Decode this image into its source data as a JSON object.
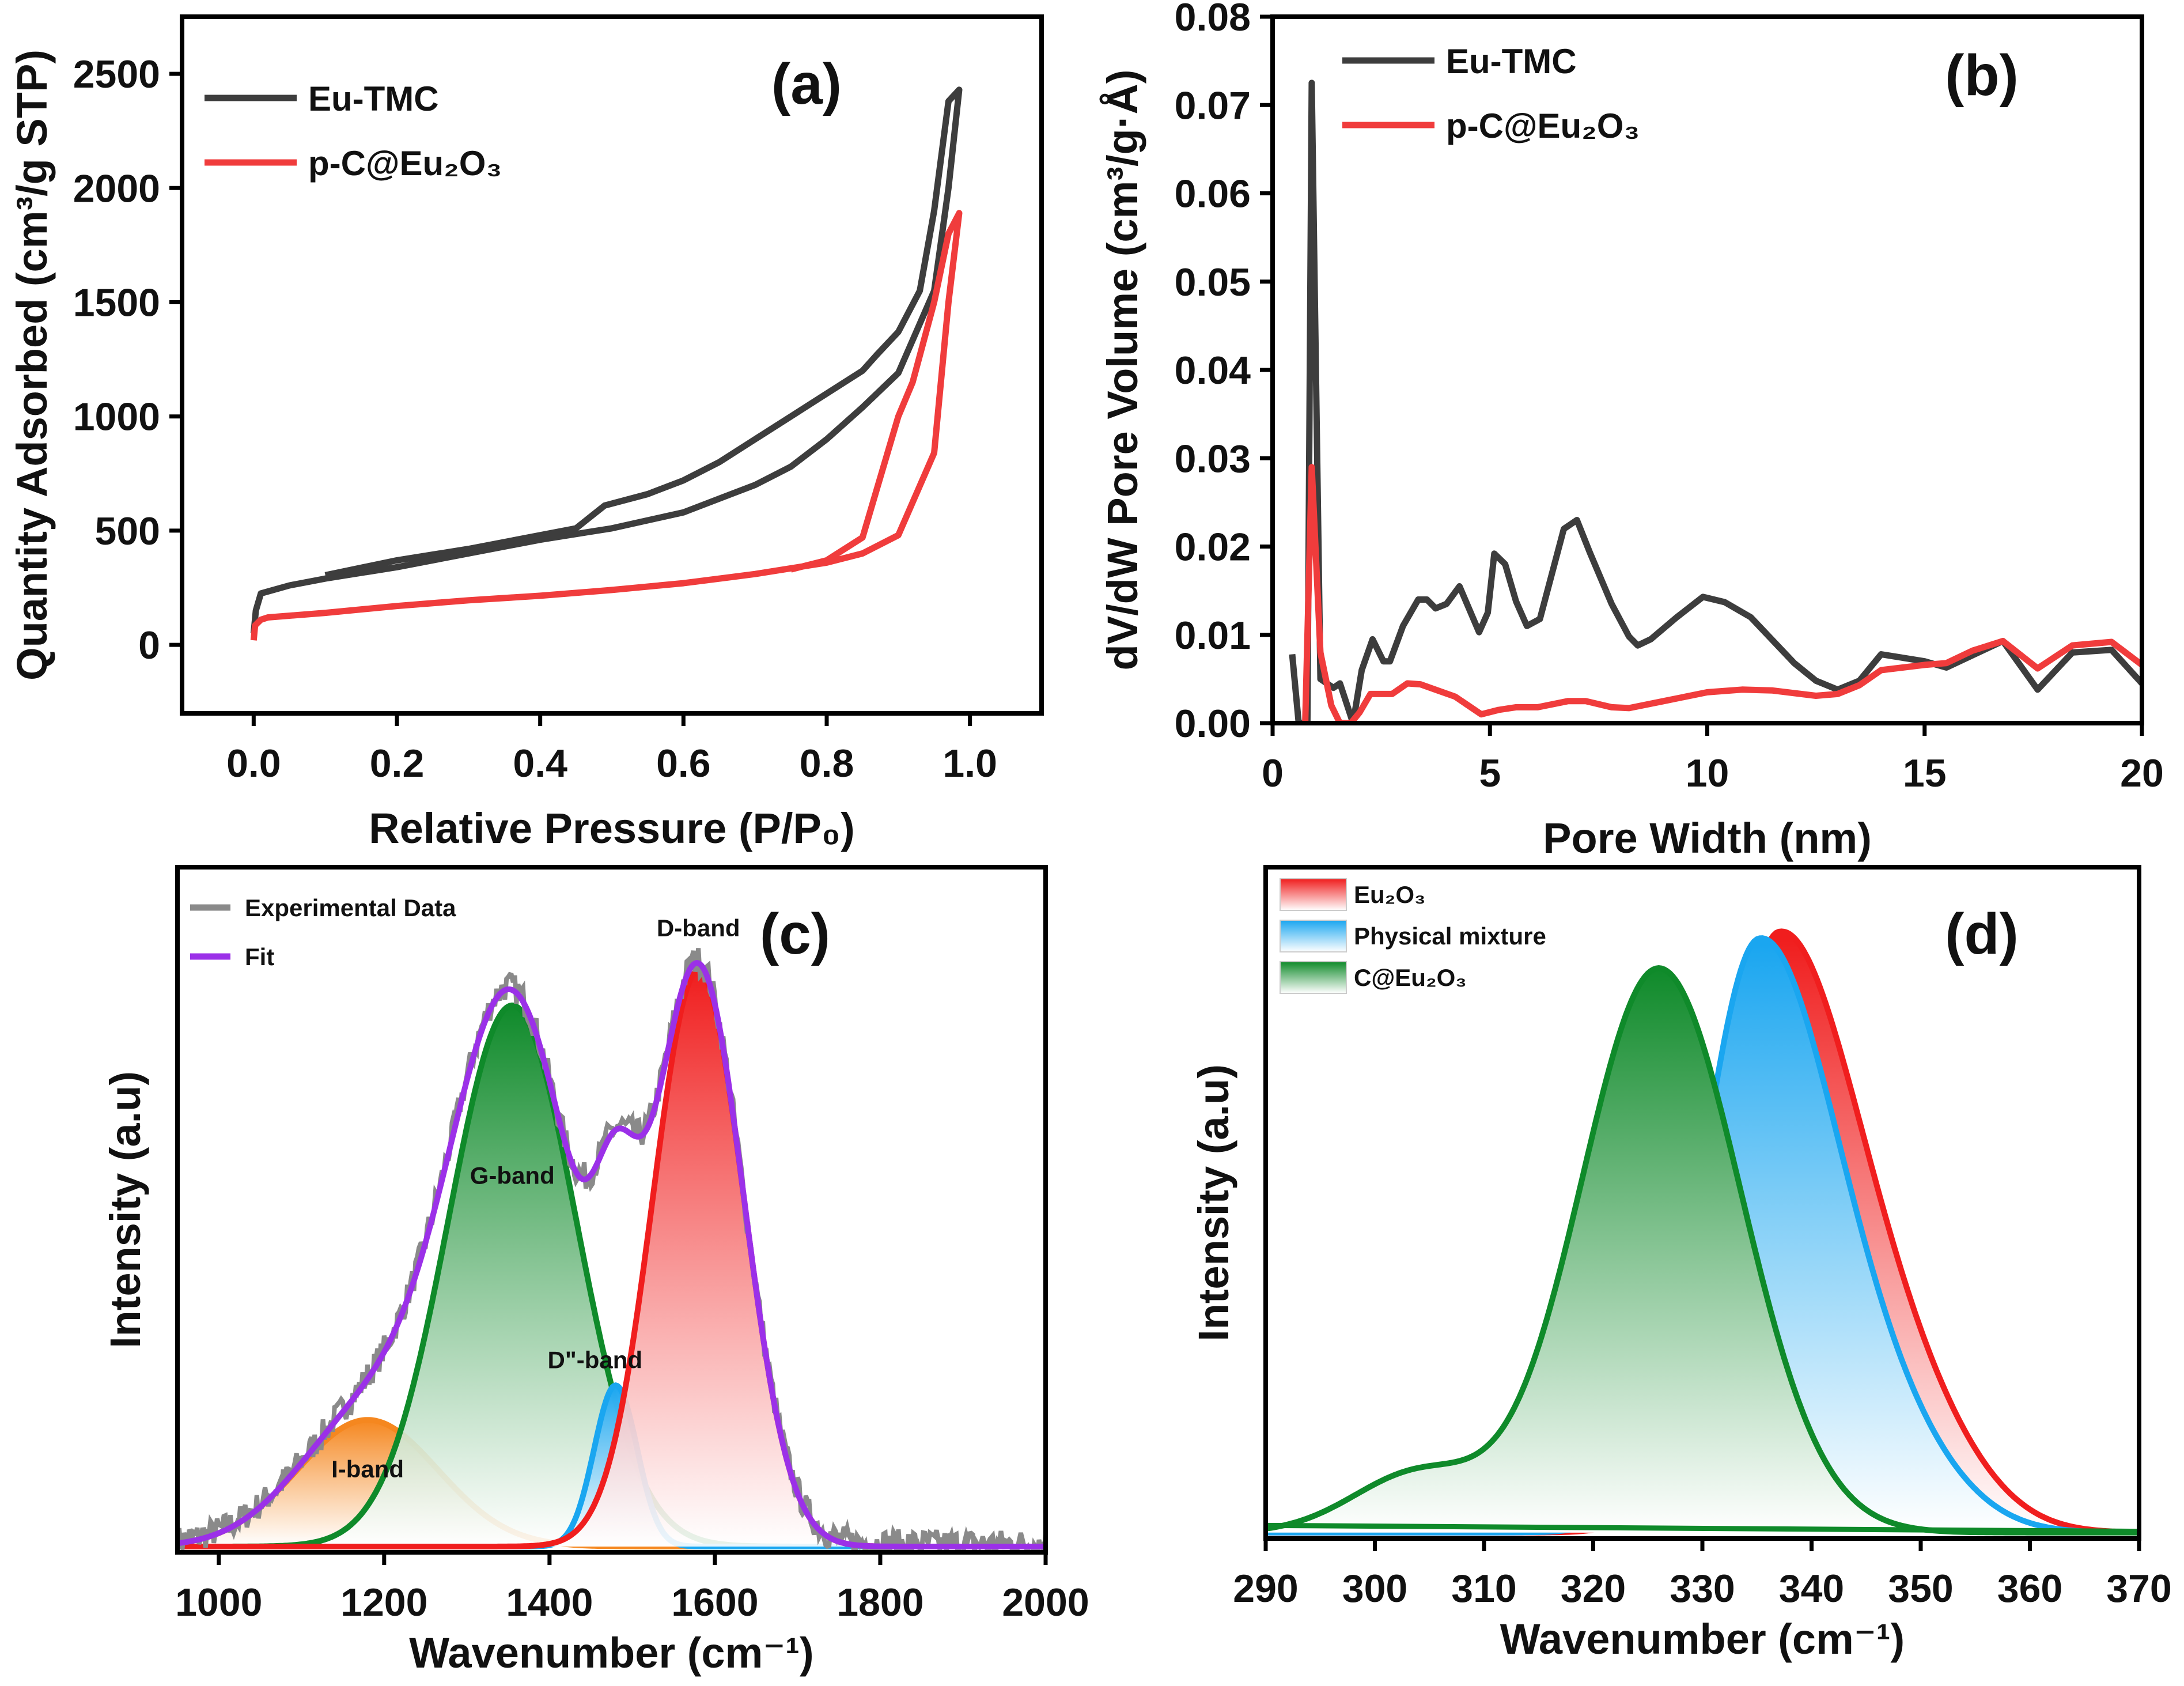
{
  "chart_data": [
    {
      "id": "a",
      "type": "line",
      "panel_label": "(a)",
      "xlabel": "Relative Pressure (P/P₀)",
      "ylabel": "Quantity Adsorbed (cm³/g STP)",
      "xlim": [
        -0.1,
        1.1
      ],
      "ylim": [
        -300,
        2750
      ],
      "xticks": [
        0.0,
        0.2,
        0.4,
        0.6,
        0.8,
        1.0
      ],
      "xtick_labels": [
        "0.0",
        "0.2",
        "0.4",
        "0.6",
        "0.8",
        "1.0"
      ],
      "yticks": [
        0,
        500,
        1000,
        1500,
        2000,
        2500
      ],
      "ytick_labels": [
        "0",
        "500",
        "1000",
        "1500",
        "2000",
        "2500"
      ],
      "legend": "top-left",
      "series": [
        {
          "name": "Eu-TMC",
          "color": "#3d3d3d",
          "x": [
            0,
            0.003,
            0.01,
            0.05,
            0.1,
            0.2,
            0.3,
            0.4,
            0.5,
            0.6,
            0.7,
            0.75,
            0.8,
            0.85,
            0.9,
            0.95,
            0.97,
            0.985,
            0.985,
            0.97,
            0.95,
            0.93,
            0.9,
            0.87,
            0.85,
            0.8,
            0.75,
            0.7,
            0.65,
            0.6,
            0.55,
            0.49,
            0.45,
            0.4,
            0.3,
            0.2,
            0.1
          ],
          "y": [
            50,
            150,
            225,
            260,
            290,
            340,
            400,
            460,
            510,
            580,
            700,
            780,
            900,
            1040,
            1190,
            1550,
            2000,
            2430,
            2430,
            2380,
            1900,
            1550,
            1370,
            1270,
            1200,
            1100,
            1000,
            900,
            800,
            720,
            660,
            610,
            510,
            480,
            420,
            370,
            305
          ]
        },
        {
          "name": "p-C@Eu₂O₃",
          "color": "#f03c3c",
          "x": [
            0,
            0.002,
            0.01,
            0.02,
            0.1,
            0.2,
            0.3,
            0.4,
            0.5,
            0.6,
            0.7,
            0.8,
            0.85,
            0.9,
            0.95,
            0.97,
            0.985,
            0.985,
            0.97,
            0.95,
            0.92,
            0.9,
            0.85,
            0.8,
            0.75
          ],
          "y": [
            20,
            85,
            110,
            120,
            140,
            170,
            195,
            215,
            240,
            270,
            310,
            360,
            400,
            480,
            840,
            1500,
            1890,
            1890,
            1800,
            1500,
            1150,
            1000,
            470,
            370,
            330
          ]
        }
      ]
    },
    {
      "id": "b",
      "type": "line",
      "panel_label": "(b)",
      "xlabel": "Pore Width (nm)",
      "ylabel": "dV/dW Pore Volume (cm³/g·Å)",
      "xlim": [
        0,
        20
      ],
      "ylim": [
        0,
        0.08
      ],
      "xticks": [
        0,
        5,
        10,
        15,
        20
      ],
      "xtick_labels": [
        "0",
        "5",
        "10",
        "15",
        "20"
      ],
      "yticks": [
        0,
        0.01,
        0.02,
        0.03,
        0.04,
        0.05,
        0.06,
        0.07,
        0.08
      ],
      "ytick_labels": [
        "0.00",
        "0.01",
        "0.02",
        "0.03",
        "0.04",
        "0.05",
        "0.06",
        "0.07",
        "0.08"
      ],
      "legend": "top-left",
      "series": [
        {
          "name": "Eu-TMC",
          "color": "#3d3d3d",
          "x": [
            0.45,
            0.6,
            0.8,
            0.9,
            1.1,
            1.4,
            1.55,
            1.65,
            1.85,
            2.05,
            2.3,
            2.55,
            2.7,
            3.0,
            3.35,
            3.55,
            3.75,
            4.0,
            4.3,
            4.75,
            4.95,
            5.1,
            5.35,
            5.6,
            5.85,
            6.15,
            6.7,
            7.0,
            7.3,
            7.8,
            8.2,
            8.4,
            8.7,
            9.3,
            9.9,
            10.4,
            11.0,
            12.0,
            12.5,
            13.0,
            13.5,
            14.0,
            15.0,
            15.5,
            16.8,
            17.6,
            18.4,
            19.3,
            20.0
          ],
          "y": [
            0.0078,
            0,
            0,
            0.0725,
            0.005,
            0.004,
            0.0045,
            0.003,
            0,
            0.006,
            0.0095,
            0.007,
            0.007,
            0.011,
            0.014,
            0.014,
            0.013,
            0.0135,
            0.0155,
            0.0103,
            0.0125,
            0.0192,
            0.018,
            0.0138,
            0.011,
            0.0118,
            0.022,
            0.023,
            0.0193,
            0.0135,
            0.0098,
            0.0088,
            0.0095,
            0.012,
            0.0143,
            0.0137,
            0.012,
            0.0068,
            0.0048,
            0.0038,
            0.0048,
            0.0078,
            0.007,
            0.0063,
            0.0093,
            0.0038,
            0.008,
            0.0083,
            0.0045
          ]
        },
        {
          "name": "p-C@Eu₂O₃",
          "color": "#f03c3c",
          "x": [
            0.75,
            0.9,
            1.1,
            1.35,
            1.55,
            1.8,
            2.0,
            2.25,
            2.5,
            2.75,
            3.1,
            3.4,
            3.8,
            4.2,
            4.8,
            5.2,
            5.6,
            6.1,
            6.8,
            7.2,
            7.8,
            8.2,
            9.0,
            10.0,
            10.8,
            11.5,
            12.5,
            13.0,
            13.5,
            14.0,
            15.0,
            15.5,
            16.1,
            16.8,
            17.6,
            18.4,
            19.3,
            20.0
          ],
          "y": [
            0,
            0.029,
            0.008,
            0.002,
            0,
            0,
            0.0012,
            0.0033,
            0.0033,
            0.0033,
            0.0045,
            0.0044,
            0.0037,
            0.003,
            0.001,
            0.0015,
            0.0018,
            0.0018,
            0.0025,
            0.0025,
            0.0018,
            0.0017,
            0.0025,
            0.0035,
            0.0038,
            0.0037,
            0.0031,
            0.0033,
            0.0043,
            0.006,
            0.0066,
            0.0068,
            0.0082,
            0.0093,
            0.0062,
            0.0088,
            0.0092,
            0.0066
          ]
        }
      ]
    },
    {
      "id": "c",
      "type": "area",
      "panel_label": "(c)",
      "xlabel": "Wavenumber (cm⁻¹)",
      "ylabel": "Intensity (a.u)",
      "xlim": [
        950,
        2000
      ],
      "ylim": [
        -0.01,
        1.18
      ],
      "xticks": [
        1000,
        1200,
        1400,
        1600,
        1800,
        2000
      ],
      "xtick_labels": [
        "1000",
        "1200",
        "1400",
        "1600",
        "1800",
        "2000"
      ],
      "legend": "top-left",
      "legend_entries": [
        {
          "name": "Experimental Data",
          "color": "#8a8a8a"
        },
        {
          "name": "Fit",
          "color": "#9b30e8"
        }
      ],
      "peaks": [
        {
          "name": "I-band",
          "label": "I-band",
          "center": 1180,
          "amplitude": 0.22,
          "sigma": 85,
          "color": "#f5871f",
          "label_y": 0.12
        },
        {
          "name": "G-band",
          "label": "G-band",
          "center": 1355,
          "amplitude": 0.94,
          "sigma": 77,
          "color": "#0f8a2a",
          "label_y": 0.63
        },
        {
          "name": "D''-band",
          "label": "D\"-band",
          "center": 1480,
          "amplitude": 0.28,
          "sigma": 26,
          "color": "#1aa6f0",
          "label_y": 0.31
        },
        {
          "name": "D-band",
          "label": "D-band",
          "center": 1580,
          "amplitude": 1.0,
          "sigma": 55,
          "color": "#f01e1e",
          "label_y": 1.06
        }
      ],
      "experimental_noise_amplitude": 0.025
    },
    {
      "id": "d",
      "type": "area",
      "panel_label": "(d)",
      "xlabel": "Wavenumber (cm⁻¹)",
      "ylabel": "Intensity (a.u)",
      "xlim": [
        290,
        370
      ],
      "ylim": [
        -0.01,
        1.12
      ],
      "xticks": [
        290,
        300,
        310,
        320,
        330,
        340,
        350,
        360,
        370
      ],
      "xtick_labels": [
        "290",
        "300",
        "310",
        "320",
        "330",
        "340",
        "350",
        "360",
        "370"
      ],
      "legend": "top-left",
      "series": [
        {
          "name": "Eu₂O₃",
          "color": "#f01e1e",
          "center": 337,
          "amplitude": 1.0,
          "sigma_left": 5.2,
          "sigma_right": 7.5,
          "tail_amplitude": 0.12,
          "tail_center": 350
        },
        {
          "name": "Physical mixture",
          "color": "#1aa6f0",
          "center": 335.2,
          "amplitude": 0.99,
          "sigma_left": 5.3,
          "sigma_right": 7.2,
          "tail_amplitude": 0.1,
          "tail_center": 348
        },
        {
          "name": "C@Eu₂O₃",
          "color": "#0f8a2a",
          "center": 326,
          "amplitude": 0.95,
          "sigma_left": 7.2,
          "sigma_right": 7.5,
          "tail_amplitude": 0.1,
          "tail_center": 304
        }
      ]
    }
  ]
}
